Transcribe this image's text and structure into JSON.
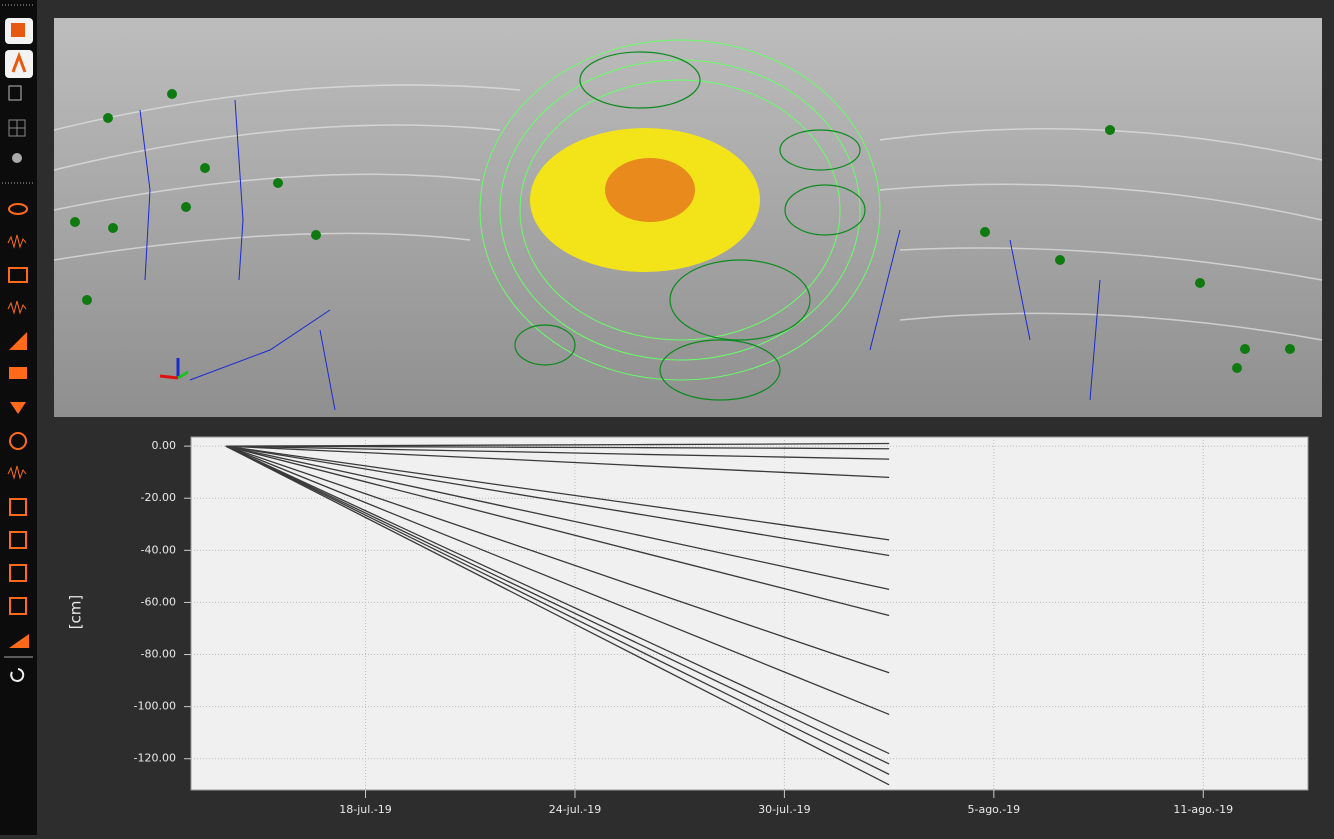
{
  "chart_data": {
    "type": "line",
    "y_label": "[cm]",
    "color": "#3a3a3a",
    "grid": true,
    "x": [
      "2019-07-14",
      "2019-07-18",
      "2019-07-22",
      "2019-07-26",
      "2019-07-30",
      "2019-08-02"
    ],
    "xlim": [
      "2019-07-13",
      "2019-08-14"
    ],
    "xticks": [
      {
        "value": "2019-07-18",
        "label": "18-jul.-19"
      },
      {
        "value": "2019-07-24",
        "label": "24-jul.-19"
      },
      {
        "value": "2019-07-30",
        "label": "30-jul.-19"
      },
      {
        "value": "2019-08-05",
        "label": "5-ago.-19"
      },
      {
        "value": "2019-08-11",
        "label": "11-ago.-19"
      }
    ],
    "ylim": [
      -132,
      3.5
    ],
    "yticks": [
      {
        "value": 0,
        "label": "0.00"
      },
      {
        "value": -20,
        "label": "-20.00"
      },
      {
        "value": -40,
        "label": "-40.00"
      },
      {
        "value": -60,
        "label": "-60.00"
      },
      {
        "value": -80,
        "label": "-80.00"
      },
      {
        "value": -100,
        "label": "-100.00"
      },
      {
        "value": -120,
        "label": "-120.00"
      }
    ],
    "series": [
      {
        "values": [
          0,
          0.2,
          0.4,
          0.6,
          0.8,
          1
        ]
      },
      {
        "values": [
          0,
          -0.2,
          -0.4,
          -0.6,
          -0.8,
          -1
        ]
      },
      {
        "values": [
          0,
          -1.1,
          -2.1,
          -3.2,
          -4.2,
          -5
        ]
      },
      {
        "values": [
          0,
          -2.5,
          -5,
          -7.6,
          -10.1,
          -12
        ]
      },
      {
        "values": [
          0,
          -7.6,
          -15.2,
          -22.7,
          -30.3,
          -36
        ]
      },
      {
        "values": [
          0,
          -8.8,
          -17.7,
          -26.5,
          -35.4,
          -42
        ]
      },
      {
        "values": [
          0,
          -11.6,
          -23.2,
          -34.7,
          -46.3,
          -55
        ]
      },
      {
        "values": [
          0,
          -13.7,
          -27.4,
          -41.1,
          -54.7,
          -65
        ]
      },
      {
        "values": [
          0,
          -18.3,
          -36.6,
          -55,
          -73.3,
          -87
        ]
      },
      {
        "values": [
          0,
          -21.7,
          -43.4,
          -65,
          -86.7,
          -103
        ]
      },
      {
        "values": [
          0,
          -24.8,
          -49.7,
          -74.5,
          -99.4,
          -118
        ]
      },
      {
        "values": [
          0,
          -25.7,
          -51.4,
          -77,
          -102.7,
          -122
        ]
      },
      {
        "values": [
          0,
          -26.5,
          -53,
          -79.6,
          -106.1,
          -126
        ]
      },
      {
        "values": [
          0,
          -27.4,
          -54.7,
          -82.1,
          -109.5,
          -130
        ]
      }
    ]
  }
}
